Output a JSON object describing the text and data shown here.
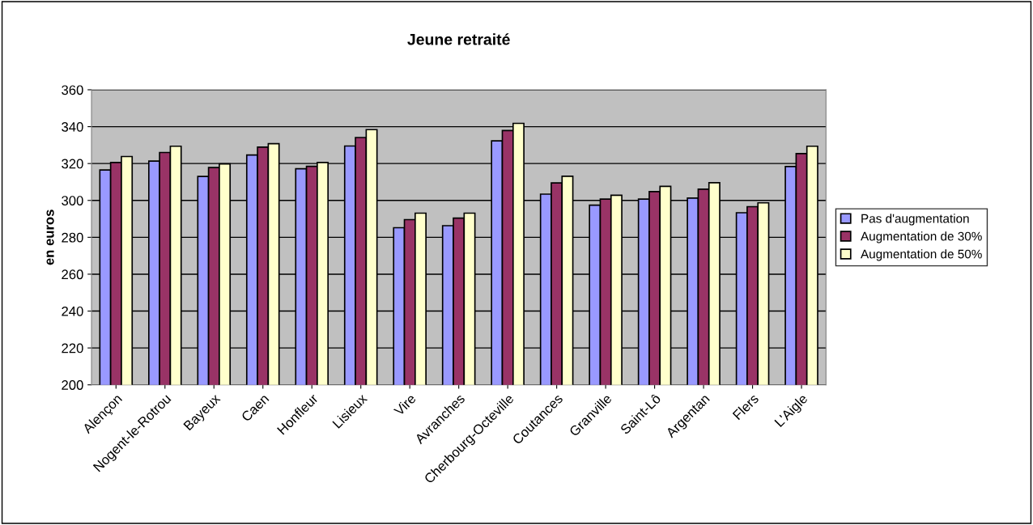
{
  "chart_data": {
    "type": "bar",
    "title": "Jeune retraité",
    "ylabel": "en euros",
    "categories": [
      "Alençon",
      "Nogent-le-Rotrou",
      "Bayeux",
      "Caen",
      "Honfleur",
      "Lisieux",
      "Vire",
      "Avranches",
      "Cherbourg-Octeville",
      "Coutances",
      "Granville",
      "Saint-Lô",
      "Argentan",
      "Flers",
      "L'Aigle"
    ],
    "series": [
      {
        "name": "Pas d'augmentation",
        "color": "#9999ff",
        "values": [
          316.5,
          321.3,
          313,
          324.6,
          317.2,
          329.5,
          285.2,
          286.3,
          332.3,
          303.4,
          297.4,
          300.7,
          301.3,
          293.3,
          318.4
        ]
      },
      {
        "name": "Augmentation de 30%",
        "color": "#993366",
        "values": [
          320.6,
          326,
          317.8,
          328.9,
          318.5,
          334.1,
          289.6,
          290.4,
          337.9,
          309.5,
          300.7,
          304.8,
          306.1,
          296.6,
          325.4
        ]
      },
      {
        "name": "Augmentation de 50%",
        "color": "#ffffcc",
        "values": [
          323.8,
          329.4,
          319.8,
          330.8,
          320.6,
          338.4,
          293.1,
          293.1,
          341.8,
          313.1,
          302.8,
          307.6,
          309.6,
          298.7,
          329.4
        ]
      }
    ],
    "ylim": [
      200,
      360
    ],
    "yticks": [
      200,
      220,
      240,
      260,
      280,
      300,
      320,
      340,
      360
    ],
    "grid": "y",
    "legend": "right"
  }
}
